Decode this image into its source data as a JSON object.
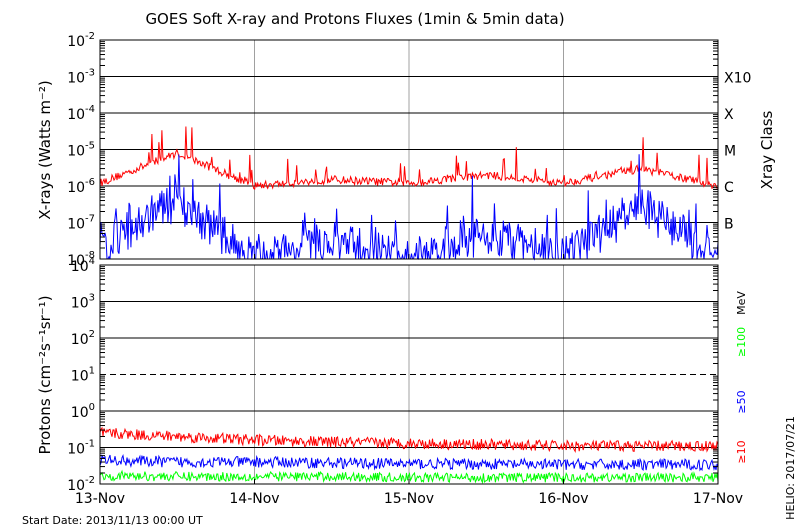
{
  "chart_data": [
    {
      "type": "line",
      "title": "GOES Soft X-ray and Protons Fluxes   (1min & 5min data)",
      "ylabel": "X-rays (Watts m⁻²)",
      "y2label": "Xray Class",
      "yscale": "log",
      "ylim": [
        1e-08,
        0.01
      ],
      "ytick_exponents": [
        -8,
        -7,
        -6,
        -5,
        -4,
        -3,
        -2
      ],
      "class_labels": [
        {
          "y": 0.001,
          "text": "X10"
        },
        {
          "y": 0.0001,
          "text": "X"
        },
        {
          "y": 1e-05,
          "text": "M"
        },
        {
          "y": 1e-06,
          "text": "C"
        },
        {
          "y": 1e-07,
          "text": "B"
        }
      ],
      "x": [
        0,
        0.5,
        1,
        1.5,
        2,
        2.5,
        3,
        3.5,
        4
      ],
      "series": [
        {
          "color": "#ff0000",
          "values": [
            1.2e-06,
            8e-06,
            1e-06,
            1.5e-06,
            1.2e-06,
            2e-06,
            1.2e-06,
            3e-06,
            1e-06
          ]
        },
        {
          "color": "#0000ff",
          "values": [
            2e-08,
            4e-07,
            1e-08,
            3e-08,
            1e-08,
            5e-08,
            1e-08,
            3e-07,
            1e-08
          ]
        }
      ]
    },
    {
      "type": "line",
      "ylabel": "Protons (cm⁻²s⁻¹sr⁻¹)",
      "yscale": "log",
      "ylim": [
        0.01,
        10000
      ],
      "ytick_exponents": [
        -2,
        -1,
        0,
        1,
        2,
        3,
        4
      ],
      "dashed_threshold": 10,
      "energy_unit": "MeV",
      "x": [
        0,
        0.5,
        1,
        1.5,
        2,
        2.5,
        3,
        3.5,
        4
      ],
      "series": [
        {
          "name": "≥10",
          "color": "#ff0000",
          "values": [
            0.25,
            0.2,
            0.16,
            0.14,
            0.13,
            0.12,
            0.11,
            0.11,
            0.11
          ]
        },
        {
          "name": "≥50",
          "color": "#0000ff",
          "values": [
            0.045,
            0.04,
            0.04,
            0.038,
            0.036,
            0.035,
            0.034,
            0.034,
            0.034
          ]
        },
        {
          "name": "≥100",
          "color": "#00ff00",
          "values": [
            0.017,
            0.016,
            0.016,
            0.016,
            0.015,
            0.015,
            0.015,
            0.015,
            0.015
          ]
        }
      ]
    }
  ],
  "x_labels": [
    "13-Nov",
    "14-Nov",
    "15-Nov",
    "16-Nov",
    "17-Nov"
  ],
  "start_date": "Start Date: 2013/11/13 00:00 UT",
  "footer": "HELIO: 2017/07/21"
}
